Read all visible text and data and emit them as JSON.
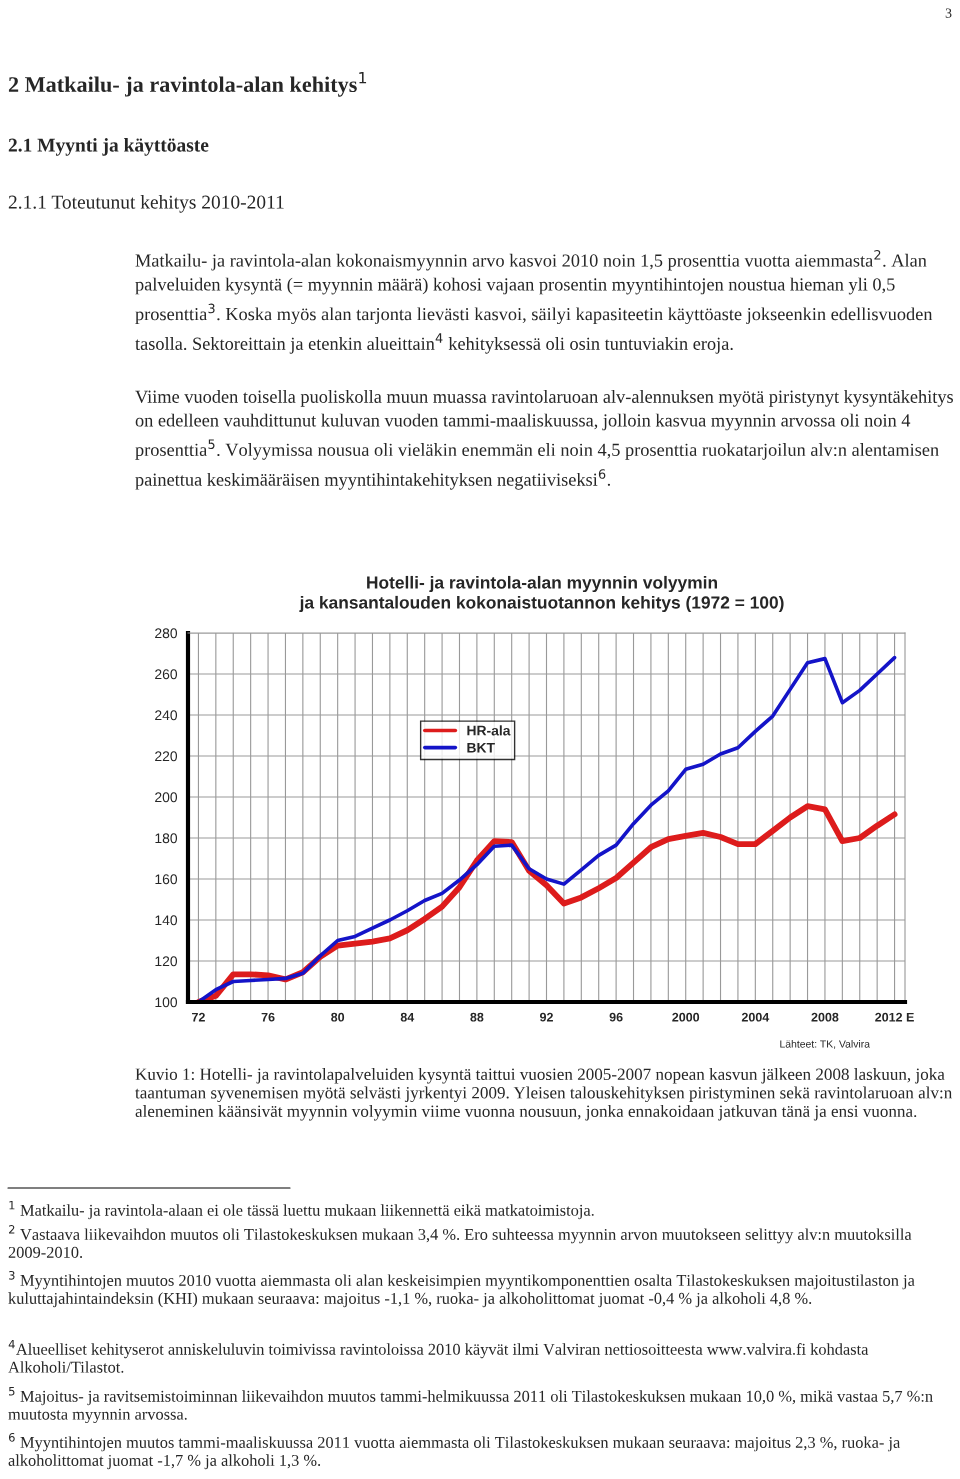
{
  "chart_data": {
    "type": "line",
    "title": "Hotelli- ja ravintola-alan myynnin volyymin\nja kansantalouden kokonaistuotannon kehitys (1972 = 100)",
    "categories": [
      "72",
      null,
      null,
      null,
      "76",
      null,
      null,
      null,
      "80",
      null,
      null,
      null,
      "84",
      null,
      null,
      null,
      "88",
      null,
      null,
      null,
      "92",
      null,
      null,
      null,
      "96",
      null,
      null,
      null,
      "2000",
      null,
      null,
      null,
      "2004",
      null,
      null,
      null,
      "2008",
      null,
      null,
      null,
      "2012 E"
    ],
    "series": [
      {
        "name": "HR-ala",
        "color": "#dd1c1c",
        "values": [
          100,
          103,
          113.5,
          113.5,
          113,
          111,
          114.5,
          122,
          127.5,
          128.5,
          129.5,
          131,
          135,
          140.5,
          146.5,
          156,
          169,
          178.5,
          178,
          164,
          157,
          148,
          151,
          155.5,
          160.5,
          168,
          175.5,
          179.5,
          181,
          182.5,
          180.5,
          177,
          177,
          183.5,
          190,
          195.5,
          194,
          178.5,
          180,
          186,
          191.5
        ]
      },
      {
        "name": "BKT",
        "color": "#1414c8",
        "values": [
          100,
          106,
          110,
          110.5,
          111,
          111.5,
          114,
          122.5,
          130,
          132,
          136,
          140,
          144.5,
          149.5,
          153,
          159.5,
          167,
          176,
          176.5,
          165,
          160,
          157.5,
          164.5,
          171.5,
          176.5,
          187,
          196,
          203,
          213.5,
          216,
          221,
          224,
          232,
          239.5,
          252.5,
          265.5,
          267.5,
          246,
          252,
          260,
          268
        ]
      }
    ],
    "ylim": [
      100,
      280
    ],
    "yticks": [
      100,
      120,
      140,
      160,
      180,
      200,
      220,
      240,
      260,
      280
    ],
    "grid": true,
    "legend": "top center",
    "marker": "none",
    "line_style": "solid",
    "annotations": [
      "3",
      "2 Matkailu- ja ravintola-alan kehitys$^{1}$",
      "2.1 Myynti ja käyttöaste",
      "2.1.1 Toteutunut kehitys 2010-2011",
      "Matkailu- ja ravintola-alan kokonaismyynnin arvo kasvoi 2010 noin 1,5 prosenttia vuotta aiemmasta$^{2}$. Alan palveluiden kysyntä (= myynnin määrä) kohosi vajaan prosentin myyntihintojen noustua hieman yli 0,5 prosenttia$^{3}$. Koska myös alan tarjonta lievästi kasvoi, säilyi kapasiteetin käyttöaste jokseenkin edellisvuoden tasolla. Sektoreittain ja etenkin alueittain$^{4}$ kehityksessä oli osin tuntuviakin eroja.",
      "Viime vuoden toisella puoliskolla muun muassa ravintolaruoan alv-alennuksen myötä piristynyt kysyntäkehitys on edelleen vauhdittunut kuluvan vuoden tammi-maaliskuussa, jolloin kasvua myynnin arvossa oli noin 4 prosenttia$^{5}$. Volyymissa nousua oli vieläkin enemmän eli noin 4,5 prosenttia ruokatarjoilun alv:n alentamisen painettua keskimääräisen myyntihintakehityksen negatiiviseksi$^{6}$.",
      "Lähteet: TK, Valvira",
      "Kuvio 1: Hotelli- ja ravintolapalveluiden kysyntä taittui vuosien 2005-2007 nopean kasvun jälkeen 2008 laskuun, joka taantuman syvenemisen myötä selvästi jyrkentyi 2009. Yleisen talouskehityksen piristyminen sekä ravintolaruoan alv:n aleneminen käänsivät myynnin volyymin viime vuonna nousuun, jonka ennakoidaan jatkuvan tänä ja ensi vuonna.",
      "$^{1}$ Matkailu- ja ravintola-alaan ei ole tässä luettu mukaan liikennettä eikä matkatoimistoja.",
      "$^{2}$ Vastaava liikevaihdon muutos oli Tilastokeskuksen mukaan 3,4 %. Ero suhteessa myynnin arvon muutokseen selittyy alv:n muutoksilla 2009-2010.",
      "$^{3}$ Myyntihintojen muutos 2010 vuotta aiemmasta oli alan keskeisimpien myyntikomponenttien osalta Tilastokeskuksen majoitustilaston ja kuluttajahintaindeksin (KHI) mukaan seuraava: majoitus -1,1 %, ruoka- ja alkoholittomat juomat -0,4 % ja alkoholi 4,8 %.",
      "$^{4}$Alueelliset kehityserot anniskeluluvin toimivissa ravintoloissa 2010 käyvät ilmi Valviran nettiosoitteesta www.valvira.fi kohdasta Alkoholi/Tilastot.",
      "$^{5}$ Majoitus- ja ravitsemistoiminnan liikevaihdon muutos tammi-helmikuussa 2011 oli Tilastokeskuksen mukaan 10,0 %, mikä vastaa 5,7 %:n muutosta myynnin arvossa.",
      "$^{6}$ Myyntihintojen muutos tammi-maaliskuussa 2011 vuotta aiemmasta oli Tilastokeskuksen mukaan seuraava: majoitus 2,3 %, ruoka- ja alkoholittomat juomat -1,7 % ja alkoholi 1,3 %."
    ]
  }
}
